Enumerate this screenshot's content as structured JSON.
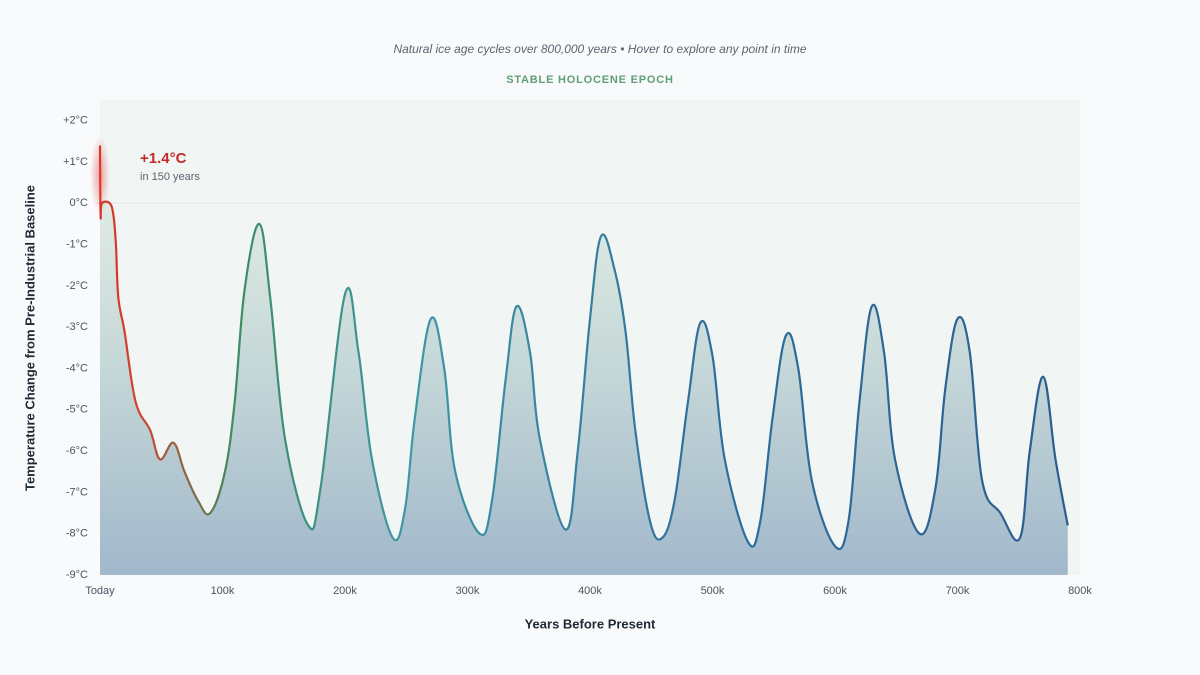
{
  "chart_data": {
    "type": "line",
    "subtitle": "Natural ice age cycles over 800,000 years • Hover to explore any point in time",
    "badge": "STABLE HOLOCENE EPOCH",
    "xlabel": "Years Before Present",
    "ylabel": "Temperature Change from Pre-Industrial Baseline",
    "annotation": {
      "value": "+1.4°C",
      "note": "in 150 years"
    },
    "xlim": [
      0,
      800000
    ],
    "ylim": [
      -9,
      2.5
    ],
    "xticks": [
      {
        "value": 0,
        "label": "Today"
      },
      {
        "value": 100000,
        "label": "100k"
      },
      {
        "value": 200000,
        "label": "200k"
      },
      {
        "value": 300000,
        "label": "300k"
      },
      {
        "value": 400000,
        "label": "400k"
      },
      {
        "value": 500000,
        "label": "500k"
      },
      {
        "value": 600000,
        "label": "600k"
      },
      {
        "value": 700000,
        "label": "700k"
      },
      {
        "value": 800000,
        "label": "800k"
      }
    ],
    "yticks": [
      {
        "value": 2,
        "label": "+2°C"
      },
      {
        "value": 1,
        "label": "+1°C"
      },
      {
        "value": 0,
        "label": "0°C"
      },
      {
        "value": -1,
        "label": "-1°C"
      },
      {
        "value": -2,
        "label": "-2°C"
      },
      {
        "value": -3,
        "label": "-3°C"
      },
      {
        "value": -4,
        "label": "-4°C"
      },
      {
        "value": -5,
        "label": "-5°C"
      },
      {
        "value": -6,
        "label": "-6°C"
      },
      {
        "value": -7,
        "label": "-7°C"
      },
      {
        "value": -8,
        "label": "-8°C"
      },
      {
        "value": -9,
        "label": "-9°C"
      }
    ],
    "line_colors": [
      "#d8352a",
      "#d0452a",
      "#3e8c62",
      "#3f97a6",
      "#2f6f9c",
      "#2c5d8e"
    ],
    "x": [
      0,
      500,
      1500,
      8000,
      11000,
      13000,
      15000,
      20000,
      29000,
      41000,
      49000,
      60000,
      69000,
      80000,
      90000,
      102000,
      110000,
      118000,
      130000,
      139000,
      151000,
      170000,
      180000,
      200000,
      211000,
      222000,
      239000,
      249000,
      257000,
      270000,
      281000,
      290000,
      310000,
      320000,
      331000,
      340000,
      351000,
      359000,
      380000,
      390000,
      400000,
      409000,
      420000,
      429000,
      437000,
      449000,
      459000,
      469000,
      480000,
      490000,
      500000,
      510000,
      529000,
      539000,
      549000,
      560000,
      570000,
      581000,
      600000,
      611000,
      620000,
      630000,
      640000,
      649000,
      669000,
      682000,
      690000,
      700000,
      710000,
      720000,
      735000,
      751000,
      759000,
      770000,
      780000,
      790000
    ],
    "values": [
      1.4,
      -0.3,
      0,
      0,
      -0.3,
      -1.0,
      -2.3,
      -3.1,
      -4.8,
      -5.5,
      -6.2,
      -5.8,
      -6.5,
      -7.2,
      -7.5,
      -6.5,
      -4.8,
      -2.1,
      -0.5,
      -2.3,
      -5.7,
      -7.8,
      -6.9,
      -2.2,
      -3.6,
      -6.2,
      -8.1,
      -7.4,
      -5.2,
      -2.8,
      -4.0,
      -6.5,
      -8.0,
      -7.2,
      -4.3,
      -2.5,
      -3.6,
      -5.7,
      -7.9,
      -6.0,
      -2.8,
      -0.8,
      -1.6,
      -3.1,
      -5.5,
      -7.7,
      -8.1,
      -7.2,
      -4.8,
      -2.9,
      -3.7,
      -6.2,
      -8.2,
      -7.7,
      -5.2,
      -3.2,
      -4.0,
      -6.7,
      -8.3,
      -7.7,
      -4.8,
      -2.5,
      -3.6,
      -6.2,
      -8.0,
      -6.9,
      -4.5,
      -2.8,
      -3.6,
      -6.7,
      -7.5,
      -8.1,
      -6.0,
      -4.2,
      -6.2,
      -7.8
    ]
  }
}
